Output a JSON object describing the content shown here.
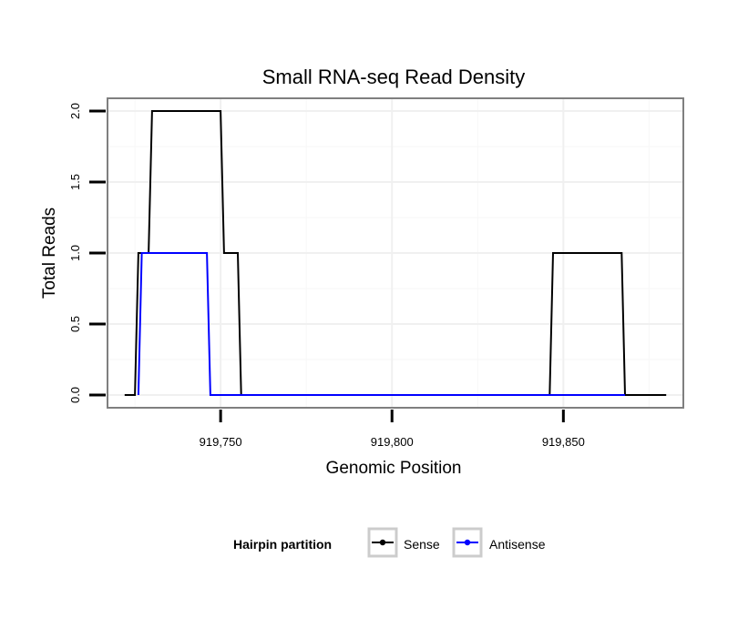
{
  "chart_data": {
    "type": "line",
    "title": "Small RNA-seq Read Density",
    "xlabel": "Genomic Position",
    "ylabel": "Total Reads",
    "xlim": [
      919717,
      919885
    ],
    "ylim": [
      -0.09,
      2.09
    ],
    "x_ticks": [
      919750,
      919800,
      919850
    ],
    "x_tick_labels": [
      "919,750",
      "919,800",
      "919,850"
    ],
    "y_ticks": [
      0.0,
      0.5,
      1.0,
      1.5,
      2.0
    ],
    "y_tick_labels": [
      "0.0",
      "0.5",
      "1.0",
      "1.5",
      "2.0"
    ],
    "grid": true,
    "legend_position": "bottom",
    "legend_title": "Hairpin partition",
    "series": [
      {
        "name": "Sense",
        "color": "#000000",
        "x": [
          919722,
          919725,
          919726,
          919729,
          919730,
          919750,
          919751,
          919755,
          919756,
          919846,
          919847,
          919867,
          919868,
          919880
        ],
        "y": [
          0,
          0,
          1,
          1,
          2,
          2,
          1,
          1,
          0,
          0,
          1,
          1,
          0,
          0
        ]
      },
      {
        "name": "Antisense",
        "color": "#0000ff",
        "x": [
          919726,
          919727,
          919746,
          919747,
          919868
        ],
        "y": [
          0,
          1,
          1,
          0,
          0
        ]
      }
    ]
  }
}
